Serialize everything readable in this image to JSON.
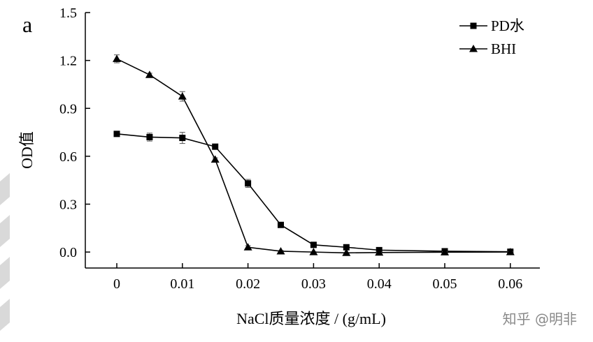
{
  "panel_label": "a",
  "watermark": "知乎 @明非",
  "chart_data": {
    "type": "line",
    "xlabel": "NaCl质量浓度 / (g/mL)",
    "ylabel": "OD值",
    "xlim": [
      -0.0048,
      0.0645
    ],
    "ylim": [
      -0.1,
      1.5
    ],
    "x_ticks": [
      0,
      0.01,
      0.02,
      0.03,
      0.04,
      0.05,
      0.06
    ],
    "x_tick_labels": [
      "0",
      "0.01",
      "0.02",
      "0.03",
      "0.04",
      "0.05",
      "0.06"
    ],
    "y_ticks": [
      0.0,
      0.3,
      0.6,
      0.9,
      1.2,
      1.5
    ],
    "y_tick_labels": [
      "0.0",
      "0.3",
      "0.6",
      "0.9",
      "1.2",
      "1.5"
    ],
    "grid": false,
    "legend_position": "top-right",
    "series": [
      {
        "name": "PD水",
        "marker": "square",
        "x": [
          0,
          0.005,
          0.01,
          0.015,
          0.02,
          0.025,
          0.03,
          0.035,
          0.04,
          0.05,
          0.06
        ],
        "y": [
          0.74,
          0.72,
          0.715,
          0.66,
          0.43,
          0.17,
          0.045,
          0.03,
          0.012,
          0.005,
          0.002
        ],
        "error": [
          0.01,
          0.025,
          0.035,
          0.01,
          0.025,
          0.015,
          0.005,
          0.005,
          0.005,
          0.003,
          0.003
        ]
      },
      {
        "name": "BHI",
        "marker": "triangle",
        "x": [
          0,
          0.005,
          0.01,
          0.015,
          0.02,
          0.025,
          0.03,
          0.035,
          0.04,
          0.05,
          0.06
        ],
        "y": [
          1.21,
          1.11,
          0.975,
          0.58,
          0.03,
          0.005,
          0.0,
          -0.005,
          -0.003,
          -0.001,
          0.0
        ],
        "error": [
          0.025,
          0.01,
          0.03,
          0.01,
          0.01,
          0.005,
          0.003,
          0.003,
          0.003,
          0.003,
          0.003
        ]
      }
    ]
  }
}
